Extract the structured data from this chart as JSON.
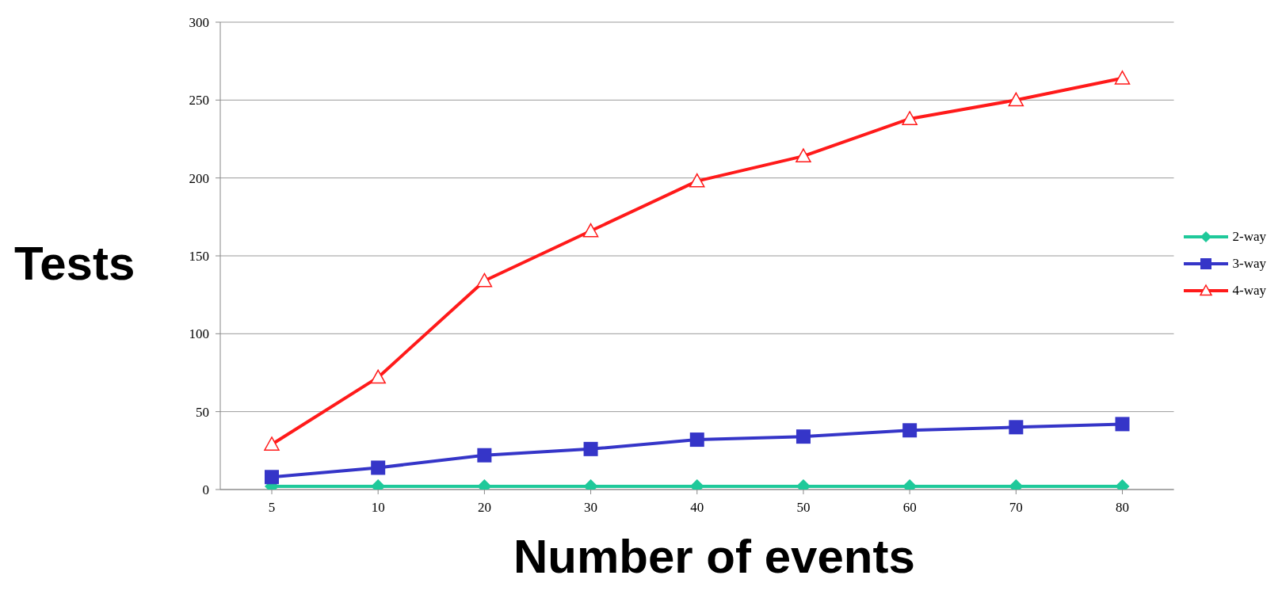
{
  "chart_data": {
    "type": "line",
    "xlabel": "Number of events",
    "ylabel": "Tests",
    "categories": [
      "5",
      "10",
      "20",
      "30",
      "40",
      "50",
      "60",
      "70",
      "80"
    ],
    "series": [
      {
        "name": "2-way",
        "color": "#1fc99a",
        "marker": "diamond",
        "values": [
          2,
          2,
          2,
          2,
          2,
          2,
          2,
          2,
          2
        ]
      },
      {
        "name": "3-way",
        "color": "#3535c8",
        "marker": "square",
        "values": [
          8,
          14,
          22,
          26,
          32,
          34,
          38,
          40,
          42
        ]
      },
      {
        "name": "4-way",
        "color": "#ff1a1a",
        "marker": "triangle",
        "values": [
          29,
          72,
          134,
          166,
          198,
          214,
          238,
          250,
          264
        ]
      }
    ],
    "ylim": [
      0,
      300
    ],
    "yticks": [
      0,
      50,
      100,
      150,
      200,
      250,
      300
    ],
    "grid": "y",
    "legend": "right",
    "line_style": "solid"
  }
}
